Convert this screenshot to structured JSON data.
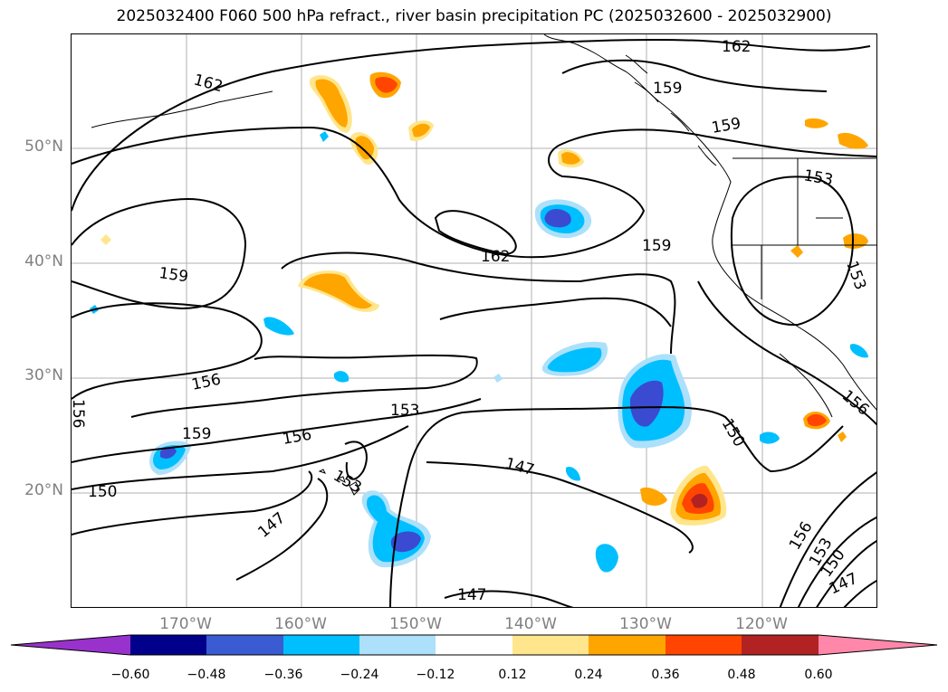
{
  "title": "2025032400 F060 500 hPa refract., river basin precipitation PC (2025032600 - 2025032900)",
  "map": {
    "lat_labels": [
      "50°N",
      "40°N",
      "30°N",
      "20°N"
    ],
    "lon_labels": [
      "170°W",
      "160°W",
      "150°W",
      "140°W",
      "130°W",
      "120°W"
    ],
    "contour_labels": [
      "162",
      "162",
      "159",
      "159",
      "159",
      "159",
      "153",
      "153",
      "156",
      "156",
      "156",
      "159",
      "153",
      "156",
      "153",
      "150",
      "147",
      "147",
      "150",
      "147",
      "156",
      "153",
      "150",
      "147",
      "162"
    ],
    "colors": {
      "neg_strong": "#3a4bd1",
      "neg_mid": "#00bfff",
      "neg_light": "#ade0fa",
      "pos_light": "#ffe68c",
      "pos_mid": "#ffa500",
      "pos_strong": "#ff4500",
      "pos_dark": "#b22222"
    }
  },
  "colorbar": {
    "ticks": [
      "−0.60",
      "−0.48",
      "−0.36",
      "−0.24",
      "−0.12",
      "0.12",
      "0.24",
      "0.36",
      "0.48",
      "0.60"
    ],
    "colors": [
      "#9932cc",
      "#00008b",
      "#3a5bd1",
      "#00bfff",
      "#ade0fa",
      "#ffffff",
      "#ffe68c",
      "#ffa500",
      "#ff4500",
      "#b22222",
      "#ff88aa"
    ]
  }
}
